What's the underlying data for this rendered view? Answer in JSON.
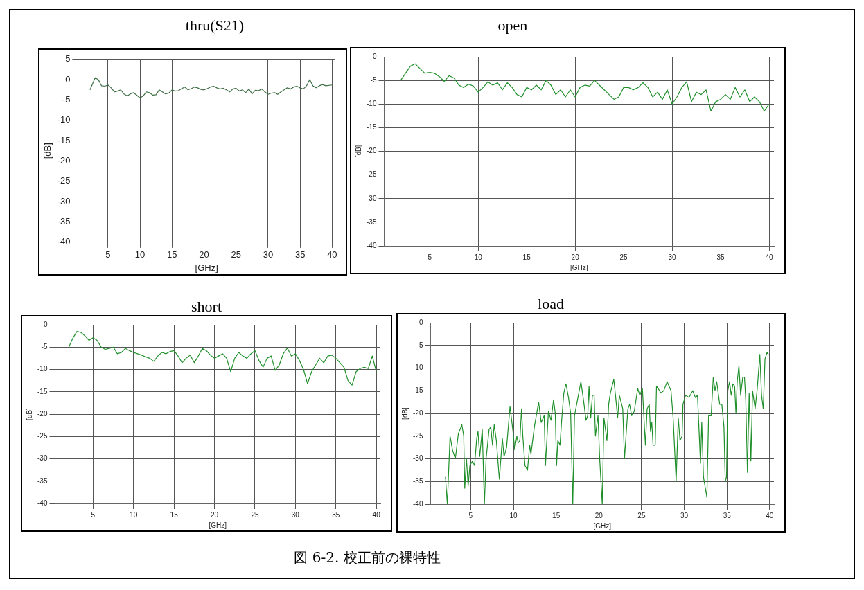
{
  "chart_data": [
    {
      "type": "line",
      "title": "thru(S21)",
      "xlabel": "[GHz]",
      "ylabel": "[dB]",
      "color": "#3f6f45",
      "line_style": "solid",
      "marker": "none",
      "grid": true,
      "legend": false,
      "xlim": [
        0.3,
        40.5
      ],
      "ylim": [
        -40,
        5
      ],
      "xticks": [
        5,
        10,
        15,
        20,
        25,
        30,
        35,
        40
      ],
      "yticks": [
        5,
        0,
        -5,
        -10,
        -15,
        -20,
        -25,
        -30,
        -35,
        -40
      ],
      "x": [
        2.2,
        3,
        3.5,
        4,
        4.5,
        5,
        5.5,
        6,
        6.5,
        7,
        7.5,
        8,
        8.5,
        9,
        9.5,
        10,
        10.5,
        11,
        11.5,
        12,
        12.5,
        13,
        13.5,
        14,
        14.5,
        15,
        15.5,
        16,
        16.5,
        17,
        17.5,
        18,
        18.5,
        19,
        19.5,
        20,
        20.5,
        21,
        21.5,
        22,
        22.5,
        23,
        23.5,
        24,
        24.5,
        25,
        25.5,
        26,
        26.5,
        27,
        27.5,
        28,
        28.5,
        29,
        29.5,
        30,
        30.5,
        31,
        31.5,
        32,
        32.5,
        33,
        33.5,
        34,
        34.5,
        35,
        35.5,
        36,
        36.5,
        37,
        37.5,
        38,
        38.5,
        39,
        40
      ],
      "values": [
        -2.5,
        0.5,
        0,
        -1.5,
        -1.6,
        -1.3,
        -2,
        -3,
        -2.8,
        -2.5,
        -3.5,
        -4,
        -3.5,
        -3.2,
        -3.8,
        -4.5,
        -4,
        -3,
        -3.2,
        -3.8,
        -3.7,
        -2.5,
        -3,
        -3.5,
        -3.3,
        -2.5,
        -2.8,
        -2.7,
        -2.2,
        -1.8,
        -2.5,
        -2.2,
        -1.8,
        -2,
        -2.4,
        -2.5,
        -2.2,
        -1.8,
        -1.6,
        -2,
        -2.3,
        -2.1,
        -2.5,
        -3,
        -2.3,
        -2.1,
        -2.8,
        -2.5,
        -3.2,
        -2.3,
        -3.5,
        -2.6,
        -2.7,
        -2.3,
        -3,
        -3.6,
        -3.3,
        -3.2,
        -3.6,
        -3,
        -2.5,
        -2,
        -2.3,
        -1.8,
        -1.6,
        -2,
        -2.3,
        -1.5,
        0,
        -1.5,
        -2,
        -1.5,
        -1.2,
        -1.5,
        -1.3
      ]
    },
    {
      "type": "line",
      "title": "open",
      "xlabel": "[GHz]",
      "ylabel": "[dB]",
      "color": "#1f8f2a",
      "line_style": "solid",
      "marker": "none",
      "grid": true,
      "legend": false,
      "xlim": [
        0.3,
        40.5
      ],
      "ylim": [
        -40,
        0
      ],
      "xticks": [
        5,
        10,
        15,
        20,
        25,
        30,
        35,
        40
      ],
      "yticks": [
        0,
        -5,
        -10,
        -15,
        -20,
        -25,
        -30,
        -35,
        -40
      ],
      "x": [
        2,
        3,
        3.5,
        4,
        4.5,
        5,
        5.5,
        6,
        6.5,
        7,
        7.5,
        8,
        8.5,
        9,
        9.5,
        10,
        10.5,
        11,
        11.5,
        12,
        12.5,
        13,
        13.5,
        14,
        14.5,
        15,
        15.5,
        16,
        16.5,
        17,
        17.5,
        18,
        18.5,
        19,
        19.5,
        20,
        20.5,
        21,
        21.5,
        22,
        22.5,
        23,
        23.5,
        24,
        24.5,
        25,
        25.5,
        26,
        26.5,
        27,
        27.5,
        28,
        28.5,
        29,
        29.5,
        30,
        30.5,
        31,
        31.5,
        32,
        32.5,
        33,
        33.5,
        34,
        34.5,
        35,
        35.5,
        36,
        36.5,
        37,
        37.5,
        38,
        38.5,
        39,
        39.5,
        40
      ],
      "values": [
        -5,
        -2,
        -1.5,
        -2.5,
        -3.5,
        -3.3,
        -3.5,
        -4.2,
        -5.2,
        -4,
        -4.5,
        -6,
        -6.5,
        -5.8,
        -6.2,
        -7.5,
        -6.5,
        -5.3,
        -6,
        -5.5,
        -7,
        -5.5,
        -6.5,
        -8,
        -8.5,
        -6.5,
        -7,
        -6,
        -7,
        -5,
        -6,
        -8,
        -7,
        -8.5,
        -7,
        -8.5,
        -6.5,
        -6,
        -6.2,
        -5,
        -6,
        -7,
        -8,
        -9,
        -8.5,
        -6.5,
        -6.5,
        -7,
        -6.5,
        -5.5,
        -6.5,
        -8.5,
        -7.5,
        -9,
        -7,
        -10,
        -8.5,
        -6.5,
        -5.3,
        -9.5,
        -7.5,
        -8,
        -7,
        -11.5,
        -9.5,
        -9,
        -8,
        -9,
        -6.5,
        -8.5,
        -7,
        -9.5,
        -8.5,
        -9.5,
        -11.5,
        -10
      ]
    },
    {
      "type": "line",
      "title": "short",
      "xlabel": "[GHz]",
      "ylabel": "[dB]",
      "color": "#1f8f2a",
      "line_style": "solid",
      "marker": "none",
      "grid": true,
      "legend": false,
      "xlim": [
        0.3,
        40.5
      ],
      "ylim": [
        -40,
        0
      ],
      "xticks": [
        5,
        10,
        15,
        20,
        25,
        30,
        35,
        40
      ],
      "yticks": [
        0,
        -5,
        -10,
        -15,
        -20,
        -25,
        -30,
        -35,
        -40
      ],
      "x": [
        2,
        2.5,
        3,
        3.5,
        4,
        4.5,
        5,
        5.5,
        6,
        6.5,
        7,
        7.5,
        8,
        8.5,
        9,
        9.5,
        10,
        10.5,
        11,
        11.5,
        12,
        12.5,
        13,
        13.5,
        14,
        14.5,
        15,
        15.5,
        16,
        16.5,
        17,
        17.5,
        18,
        18.5,
        19,
        19.5,
        20,
        20.5,
        21,
        21.5,
        22,
        22.5,
        23,
        23.5,
        24,
        24.5,
        25,
        25.5,
        26,
        26.5,
        27,
        27.5,
        28,
        28.5,
        29,
        29.5,
        30,
        30.5,
        31,
        31.5,
        32,
        32.5,
        33,
        33.5,
        34,
        34.5,
        35,
        35.5,
        36,
        36.5,
        37,
        37.5,
        38,
        38.5,
        39,
        39.5,
        40
      ],
      "values": [
        -5,
        -3,
        -1.5,
        -1.7,
        -2.5,
        -3.5,
        -2.9,
        -3.5,
        -5,
        -5.5,
        -5.3,
        -5,
        -6.5,
        -6.2,
        -5.3,
        -5.8,
        -6.2,
        -6.5,
        -6.8,
        -7.2,
        -7.5,
        -8.2,
        -7,
        -6.2,
        -6.5,
        -6,
        -5.8,
        -7,
        -8.5,
        -7.5,
        -6.8,
        -8.5,
        -7,
        -5.3,
        -5.8,
        -6.8,
        -7.5,
        -7,
        -6.5,
        -7.5,
        -10.5,
        -7.5,
        -6.2,
        -7,
        -7.5,
        -6.5,
        -5.8,
        -8,
        -9.5,
        -7.5,
        -7,
        -10.2,
        -9,
        -6.5,
        -5.2,
        -7,
        -6.5,
        -8,
        -10,
        -13.2,
        -10.5,
        -9,
        -7.5,
        -8.5,
        -7,
        -6.8,
        -7.5,
        -8.5,
        -9.5,
        -12.5,
        -13.5,
        -10.5,
        -9.8,
        -9.5,
        -9.8,
        -7,
        -10.5
      ]
    },
    {
      "type": "line",
      "title": "load",
      "xlabel": "[GHz]",
      "ylabel": "[dB]",
      "color": "#1f8f2a",
      "line_style": "solid",
      "marker": "none",
      "grid": true,
      "legend": false,
      "xlim": [
        0.3,
        40.5
      ],
      "ylim": [
        -40,
        0
      ],
      "xticks": [
        5,
        10,
        15,
        20,
        25,
        30,
        35,
        40
      ],
      "yticks": [
        0,
        -5,
        -10,
        -15,
        -20,
        -25,
        -30,
        -35,
        -40
      ],
      "annotations": [
        "図 6-2. 校正前の裸特性"
      ],
      "x": [
        2.04,
        2.26,
        2.58,
        2.86,
        3.2,
        3.55,
        3.96,
        4.18,
        4.3,
        4.5,
        4.7,
        4.9,
        5.2,
        5.45,
        5.7,
        5.85,
        6.05,
        6.35,
        6.6,
        6.8,
        7.15,
        7.35,
        7.55,
        7.75,
        8,
        8.35,
        8.7,
        8.9,
        9.2,
        9.6,
        9.95,
        10.15,
        10.4,
        10.55,
        10.75,
        10.95,
        11.1,
        11.35,
        11.65,
        11.9,
        12.05,
        12.45,
        12.95,
        13.25,
        13.6,
        13.75,
        14.1,
        14.4,
        14.7,
        14.9,
        15.05,
        15.2,
        15.45,
        15.65,
        15.9,
        16.15,
        16.45,
        16.7,
        16.95,
        17.15,
        17.65,
        17.9,
        18.2,
        18.5,
        18.7,
        18.85,
        19.05,
        19.25,
        19.45,
        19.6,
        19.9,
        20.1,
        20.4,
        20.6,
        20.95,
        21.15,
        21.35,
        21.75,
        21.95,
        22.2,
        22.4,
        22.8,
        23,
        23.4,
        23.6,
        23.85,
        24.15,
        24.55,
        24.8,
        25.1,
        25.45,
        25.65,
        25.9,
        26.05,
        26.2,
        26.35,
        26.6,
        26.75,
        26.95,
        27.25,
        27.6,
        28,
        28.45,
        28.7,
        29.05,
        29.3,
        29.5,
        29.75,
        29.85,
        30.15,
        30.55,
        31,
        31.3,
        31.55,
        31.9,
        32.05,
        32.25,
        32.65,
        32.85,
        33.15,
        33.4,
        33.6,
        33.8,
        34.15,
        34.4,
        34.65,
        34.8,
        34.95,
        35.1,
        35.3,
        35.5,
        35.7,
        35.9,
        36.05,
        36.2,
        36.4,
        36.6,
        36.85,
        37.05,
        37.2,
        37.4,
        37.6,
        37.8,
        38,
        38.3,
        38.55,
        38.85,
        39.05,
        39.25,
        39.45,
        39.7,
        39.85
      ],
      "values": [
        -34,
        -40,
        -25,
        -28,
        -30,
        -24.5,
        -22.5,
        -25,
        -36.5,
        -30,
        -36,
        -31.5,
        -30.5,
        -31.5,
        -25.5,
        -24,
        -29.5,
        -23.5,
        -40,
        -30,
        -23.5,
        -23,
        -27,
        -22.5,
        -26,
        -34.5,
        -25.5,
        -29.5,
        -27.5,
        -18.5,
        -24,
        -28,
        -25,
        -26.5,
        -26,
        -19,
        -25,
        -31.5,
        -32.5,
        -27,
        -29,
        -23,
        -17.5,
        -22,
        -20.5,
        -31.5,
        -19.5,
        -21.5,
        -17,
        -20,
        -31.5,
        -26,
        -27,
        -21.5,
        -15.5,
        -13.5,
        -16.5,
        -20,
        -40,
        -20.5,
        -15.5,
        -13,
        -17,
        -21.5,
        -20.5,
        -14,
        -21,
        -16,
        -16,
        -25,
        -20.5,
        -30,
        -40,
        -21,
        -26,
        -18,
        -15.5,
        -12.5,
        -16,
        -21,
        -16,
        -19,
        -30,
        -19,
        -18,
        -20.5,
        -19.5,
        -14.5,
        -16,
        -14.5,
        -27,
        -19,
        -18,
        -24,
        -22,
        -27,
        -27,
        -14,
        -14.5,
        -15.5,
        -15,
        -13,
        -15,
        -21,
        -35,
        -21,
        -26,
        -25,
        -18,
        -16,
        -16.5,
        -15,
        -16.5,
        -16,
        -31,
        -22,
        -34,
        -38.5,
        -20.5,
        -20.5,
        -12,
        -15,
        -13,
        -18,
        -18,
        -23,
        -35,
        -34,
        -15,
        -13,
        -16,
        -13.5,
        -14,
        -20,
        -13,
        -9.5,
        -16,
        -12,
        -12,
        -17,
        -33,
        -15.5,
        -30.5,
        -15,
        -19,
        -14.5,
        -7,
        -16,
        -19,
        -8,
        -6.5,
        -7
      ]
    }
  ]
}
